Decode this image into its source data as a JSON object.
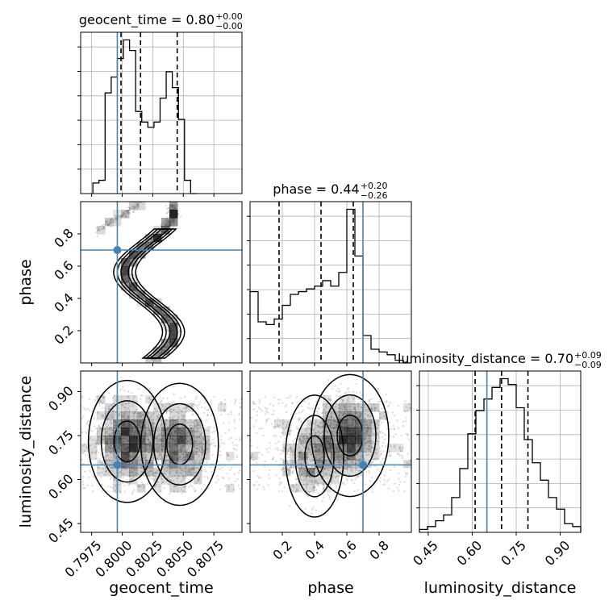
{
  "chart_data": {
    "type": "corner",
    "parameters": [
      "geocent_time",
      "phase",
      "luminosity_distance"
    ],
    "truths": {
      "geocent_time": 0.7996,
      "phase": 0.7,
      "luminosity_distance": 0.65
    },
    "colors": {
      "truth": "#4682b4",
      "hist": "#000000",
      "grid": "#b0b0b0",
      "density": "#000000",
      "points": "#9a9a9a"
    },
    "titles": {
      "geocent_time": {
        "label": "geocent_time = 0.80",
        "plus": "+0.00",
        "minus": "−0.00"
      },
      "phase": {
        "label": "phase = 0.44",
        "plus": "+0.20",
        "minus": "−0.26"
      },
      "luminosity_distance": {
        "label": "luminosity_distance = 0.70",
        "plus": "+0.09",
        "minus": "−0.09"
      }
    },
    "axis_labels": {
      "geocent_time": "geocent_time",
      "phase": "phase",
      "luminosity_distance": "luminosity_distance"
    },
    "ranges": {
      "geocent_time": [
        0.7966,
        0.8098
      ],
      "phase": [
        0.0,
        1.0
      ],
      "luminosity_distance": [
        0.42,
        0.97
      ]
    },
    "ticks": {
      "geocent_time": [
        {
          "value": 0.7975,
          "label": "0.7975"
        },
        {
          "value": 0.8,
          "label": "0.8000"
        },
        {
          "value": 0.8025,
          "label": "0.8025"
        },
        {
          "value": 0.805,
          "label": "0.8050"
        },
        {
          "value": 0.8075,
          "label": "0.8075"
        }
      ],
      "phase": [
        {
          "value": 0.2,
          "label": "0.2"
        },
        {
          "value": 0.4,
          "label": "0.4"
        },
        {
          "value": 0.6,
          "label": "0.6"
        },
        {
          "value": 0.8,
          "label": "0.8"
        }
      ],
      "luminosity_distance": [
        {
          "value": 0.45,
          "label": "0.45"
        },
        {
          "value": 0.6,
          "label": "0.60"
        },
        {
          "value": 0.75,
          "label": "0.75"
        },
        {
          "value": 0.9,
          "label": "0.90"
        }
      ]
    },
    "quantiles": {
      "geocent_time": [
        0.7999,
        0.8015,
        0.8045
      ],
      "phase": [
        0.18,
        0.44,
        0.64
      ],
      "luminosity_distance": [
        0.61,
        0.7,
        0.79
      ]
    },
    "histograms": {
      "geocent_time": {
        "edges": [
          0.7976,
          0.7981,
          0.7986,
          0.7991,
          0.7996,
          0.8001,
          0.8006,
          0.8011,
          0.8016,
          0.8021,
          0.8026,
          0.8031,
          0.8036,
          0.8041,
          0.8046,
          0.8051,
          0.8056,
          0.8061
        ],
        "counts": [
          4,
          5,
          38,
          44,
          51,
          58,
          54,
          31,
          27,
          25,
          27,
          36,
          46,
          40,
          28,
          5,
          0
        ]
      },
      "phase": {
        "edges": [
          0.0,
          0.05,
          0.1,
          0.15,
          0.2,
          0.25,
          0.3,
          0.35,
          0.4,
          0.45,
          0.5,
          0.55,
          0.6,
          0.65,
          0.7,
          0.75,
          0.8,
          0.85,
          0.9,
          0.95,
          1.0
        ],
        "counts": [
          26,
          15,
          14,
          16,
          21,
          25,
          26,
          27,
          28,
          30,
          28,
          33,
          56,
          39,
          10,
          5,
          4,
          3,
          1,
          0
        ]
      },
      "luminosity_distance": {
        "edges": [
          0.42,
          0.4475,
          0.475,
          0.5025,
          0.53,
          0.5575,
          0.585,
          0.6125,
          0.64,
          0.6675,
          0.695,
          0.7225,
          0.75,
          0.7775,
          0.805,
          0.8325,
          0.86,
          0.8875,
          0.915,
          0.9425,
          0.97
        ],
        "counts": [
          1,
          2,
          4,
          6,
          12,
          22,
          34,
          42,
          46,
          50,
          53,
          51,
          43,
          32,
          24,
          18,
          12,
          8,
          3,
          2
        ]
      }
    },
    "density_components": {
      "geocent_time__phase": {
        "type": "sinusoid",
        "x_center": 0.8022,
        "x_amplitude": 0.002,
        "phase_cycles": 1.35
      },
      "geocent_time__luminosity_distance": [
        {
          "x": 0.8004,
          "y": 0.73,
          "weight": 1.0
        },
        {
          "x": 0.8047,
          "y": 0.72,
          "weight": 0.8
        }
      ],
      "phase__luminosity_distance": [
        {
          "x": 0.62,
          "y": 0.75,
          "weight": 1.0
        },
        {
          "x": 0.4,
          "y": 0.68,
          "weight": 0.55
        }
      ]
    }
  }
}
